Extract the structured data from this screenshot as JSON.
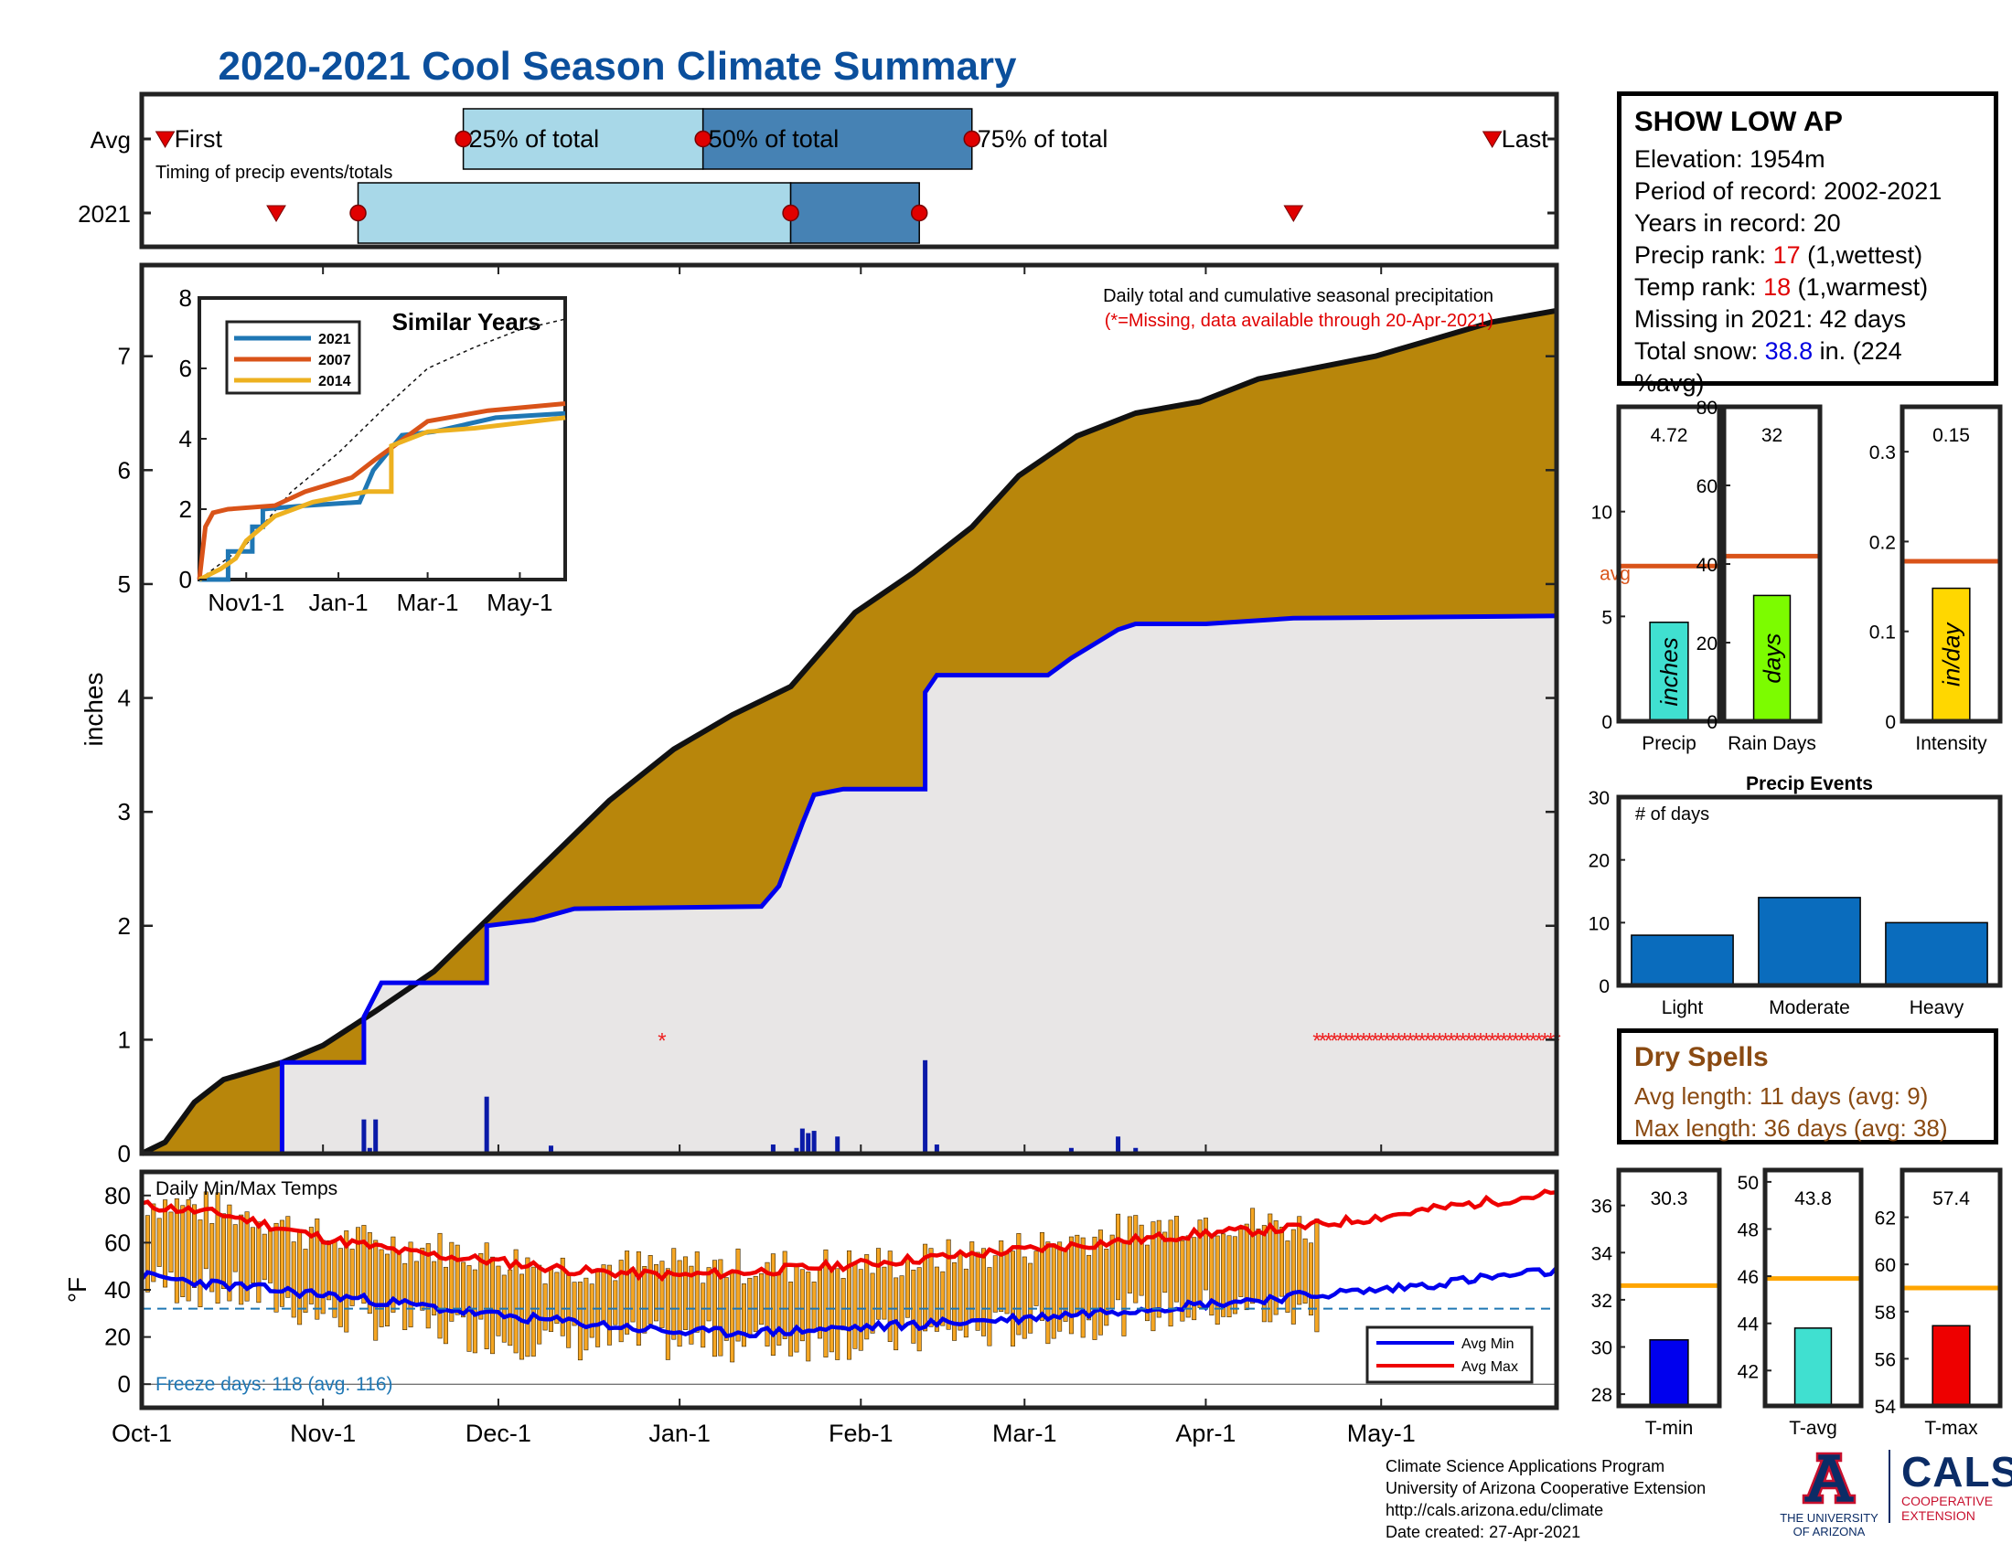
{
  "title": "2020-2021 Cool Season Climate Summary",
  "timing": {
    "row_labels": [
      "Avg",
      "2021"
    ],
    "labels": {
      "first": "First",
      "p25": "25% of total",
      "p50": "50% of total",
      "p75": "75% of total",
      "last": "Last"
    },
    "caption": "Timing of precip events/totals",
    "colors": {
      "light": "#a8d8e8",
      "dark": "#4682b4",
      "marker": "#e00000"
    },
    "avg": {
      "first": "2020-10-05",
      "p25": "2020-11-25",
      "p50": "2021-01-05",
      "p75": "2021-02-20",
      "last": "2021-05-20"
    },
    "y2021": {
      "first": "2020-10-24",
      "p25": "2020-11-07",
      "p50": "2021-01-20",
      "p75": "2021-02-11",
      "last": "2021-04-16"
    }
  },
  "chart_data": [
    {
      "type": "area",
      "id": "main-precip",
      "title": "Daily total and cumulative seasonal precipitation",
      "subtitle": "(*=Missing, data available through 20-Apr-2021)",
      "ylabel": "inches",
      "ylim": [
        0,
        7.8
      ],
      "yticks": [
        0,
        1,
        2,
        3,
        4,
        5,
        6,
        7
      ],
      "x_range": [
        "2020-10-01",
        "2021-05-31"
      ],
      "x_tick_labels": [
        [
          "2020-10-01",
          "Oct-1"
        ],
        [
          "2020-11-01",
          "Nov-1"
        ],
        [
          "2020-12-01",
          "Dec-1"
        ],
        [
          "2021-01-01",
          "Jan-1"
        ],
        [
          "2021-02-01",
          "Feb-1"
        ],
        [
          "2021-03-01",
          "Mar-1"
        ],
        [
          "2021-04-01",
          "Apr-1"
        ],
        [
          "2021-05-01",
          "May-1"
        ]
      ],
      "colors": {
        "avg_fill": "#b8860b",
        "season_fill": "#e8e6e6",
        "season_line": "#0000ee",
        "avg_line": "#111111",
        "daily_bar": "#0a1aa8",
        "missing": "#ee2020"
      },
      "cumulative_avg": [
        [
          "2020-10-01",
          0
        ],
        [
          "2020-10-05",
          0.1
        ],
        [
          "2020-10-10",
          0.45
        ],
        [
          "2020-10-15",
          0.65
        ],
        [
          "2020-10-25",
          0.8
        ],
        [
          "2020-11-01",
          0.95
        ],
        [
          "2020-11-10",
          1.25
        ],
        [
          "2020-11-20",
          1.6
        ],
        [
          "2020-11-30",
          2.1
        ],
        [
          "2020-12-10",
          2.6
        ],
        [
          "2020-12-20",
          3.1
        ],
        [
          "2020-12-31",
          3.55
        ],
        [
          "2021-01-10",
          3.85
        ],
        [
          "2021-01-20",
          4.1
        ],
        [
          "2021-01-31",
          4.75
        ],
        [
          "2021-02-10",
          5.1
        ],
        [
          "2021-02-20",
          5.5
        ],
        [
          "2021-02-28",
          5.95
        ],
        [
          "2021-03-10",
          6.3
        ],
        [
          "2021-03-20",
          6.5
        ],
        [
          "2021-03-31",
          6.6
        ],
        [
          "2021-04-10",
          6.8
        ],
        [
          "2021-04-20",
          6.9
        ],
        [
          "2021-04-30",
          7.0
        ],
        [
          "2021-05-10",
          7.15
        ],
        [
          "2021-05-20",
          7.3
        ],
        [
          "2021-05-31",
          7.4
        ]
      ],
      "cumulative_2021": [
        [
          "2020-10-01",
          0
        ],
        [
          "2020-10-25",
          0
        ],
        [
          "2020-10-25",
          0.8
        ],
        [
          "2020-11-08",
          0.8
        ],
        [
          "2020-11-08",
          1.2
        ],
        [
          "2020-11-11",
          1.5
        ],
        [
          "2020-11-29",
          1.5
        ],
        [
          "2020-11-29",
          2.0
        ],
        [
          "2020-12-07",
          2.05
        ],
        [
          "2020-12-14",
          2.15
        ],
        [
          "2021-01-15",
          2.17
        ],
        [
          "2021-01-18",
          2.35
        ],
        [
          "2021-01-22",
          2.9
        ],
        [
          "2021-01-24",
          3.15
        ],
        [
          "2021-01-29",
          3.2
        ],
        [
          "2021-02-12",
          3.2
        ],
        [
          "2021-02-12",
          4.05
        ],
        [
          "2021-02-14",
          4.2
        ],
        [
          "2021-03-05",
          4.2
        ],
        [
          "2021-03-09",
          4.35
        ],
        [
          "2021-03-17",
          4.6
        ],
        [
          "2021-03-20",
          4.65
        ],
        [
          "2021-04-01",
          4.65
        ],
        [
          "2021-04-16",
          4.7
        ],
        [
          "2021-05-31",
          4.72
        ]
      ],
      "daily_bars": [
        [
          "2020-11-08",
          0.3
        ],
        [
          "2020-11-09",
          0.05
        ],
        [
          "2020-11-10",
          0.3
        ],
        [
          "2020-11-29",
          0.5
        ],
        [
          "2020-12-10",
          0.07
        ],
        [
          "2021-01-17",
          0.08
        ],
        [
          "2021-01-21",
          0.05
        ],
        [
          "2021-01-22",
          0.22
        ],
        [
          "2021-01-23",
          0.18
        ],
        [
          "2021-01-24",
          0.2
        ],
        [
          "2021-01-28",
          0.15
        ],
        [
          "2021-02-12",
          0.82
        ],
        [
          "2021-02-14",
          0.08
        ],
        [
          "2021-03-09",
          0.05
        ],
        [
          "2021-03-17",
          0.15
        ],
        [
          "2021-03-20",
          0.05
        ]
      ],
      "missing_dates": [
        "2020-12-29",
        "2021-04-20",
        "2021-05-31"
      ],
      "missing_y": 1.0
    },
    {
      "type": "line",
      "id": "similar-years",
      "title": "Similar Years",
      "ylim": [
        0,
        8
      ],
      "yticks": [
        0,
        2,
        4,
        6,
        8
      ],
      "x_range": [
        "2020-10-01",
        "2021-05-31"
      ],
      "x_tick_labels": [
        [
          "2020-11-01",
          "Nov1-1"
        ],
        [
          "2021-01-01",
          "Jan-1"
        ],
        [
          "2021-03-01",
          "Mar-1"
        ],
        [
          "2021-05-01",
          "May-1"
        ]
      ],
      "series": [
        {
          "name": "2021",
          "color": "#1f77b4",
          "values": [
            [
              "2020-10-01",
              0
            ],
            [
              "2020-10-20",
              0
            ],
            [
              "2020-10-20",
              0.8
            ],
            [
              "2020-11-05",
              0.8
            ],
            [
              "2020-11-05",
              1.5
            ],
            [
              "2020-11-12",
              1.5
            ],
            [
              "2020-11-12",
              2.0
            ],
            [
              "2020-12-10",
              2.1
            ],
            [
              "2021-01-15",
              2.2
            ],
            [
              "2021-01-24",
              3.1
            ],
            [
              "2021-02-12",
              4.1
            ],
            [
              "2021-03-05",
              4.2
            ],
            [
              "2021-04-15",
              4.6
            ],
            [
              "2021-05-31",
              4.72
            ]
          ]
        },
        {
          "name": "2007",
          "color": "#d95319",
          "values": [
            [
              "2020-10-01",
              0
            ],
            [
              "2020-10-05",
              1.5
            ],
            [
              "2020-10-10",
              1.9
            ],
            [
              "2020-10-20",
              2.0
            ],
            [
              "2020-11-20",
              2.1
            ],
            [
              "2020-12-10",
              2.5
            ],
            [
              "2021-01-10",
              2.9
            ],
            [
              "2021-01-25",
              3.4
            ],
            [
              "2021-02-10",
              3.9
            ],
            [
              "2021-03-01",
              4.5
            ],
            [
              "2021-04-10",
              4.8
            ],
            [
              "2021-05-31",
              5.0
            ]
          ]
        },
        {
          "name": "2014",
          "color": "#edb120",
          "values": [
            [
              "2020-10-01",
              0
            ],
            [
              "2020-10-15",
              0.3
            ],
            [
              "2020-10-25",
              0.6
            ],
            [
              "2020-11-01",
              1.1
            ],
            [
              "2020-11-20",
              1.8
            ],
            [
              "2020-12-15",
              2.2
            ],
            [
              "2021-01-20",
              2.5
            ],
            [
              "2021-02-05",
              2.5
            ],
            [
              "2021-02-05",
              3.8
            ],
            [
              "2021-03-01",
              4.2
            ],
            [
              "2021-04-01",
              4.3
            ],
            [
              "2021-05-31",
              4.6
            ]
          ]
        }
      ],
      "reference_line": [
        [
          "2020-10-01",
          0
        ],
        [
          "2020-11-01",
          1.0
        ],
        [
          "2020-12-01",
          2.5
        ],
        [
          "2021-01-01",
          3.6
        ],
        [
          "2021-02-01",
          4.9
        ],
        [
          "2021-03-01",
          6.0
        ],
        [
          "2021-04-01",
          6.6
        ],
        [
          "2021-05-01",
          7.1
        ],
        [
          "2021-05-31",
          7.4
        ]
      ]
    },
    {
      "type": "bar",
      "id": "precip-summary",
      "panels": [
        {
          "label": "Precip",
          "value": 4.72,
          "value_text": "4.72",
          "avg": 7.4,
          "avg_label": "avg",
          "unit_label": "inches",
          "ylim": [
            0,
            15
          ],
          "yticks": [
            0,
            5,
            10
          ],
          "color": "#40e0d0"
        },
        {
          "label": "Rain Days",
          "value": 32,
          "value_text": "32",
          "avg": 42,
          "unit_label": "days",
          "ylim": [
            0,
            80
          ],
          "yticks": [
            0,
            20,
            40,
            60,
            80
          ],
          "color": "#7cfc00"
        },
        {
          "label": "Intensity",
          "value": 0.148,
          "value_text": "0.15",
          "avg": 0.178,
          "unit_label": "in/day",
          "ylim": [
            0,
            0.35
          ],
          "yticks": [
            0,
            0.1,
            0.2,
            0.3
          ],
          "color": "#ffd700"
        }
      ],
      "avg_line_color": "#d95319"
    },
    {
      "type": "bar",
      "id": "precip-events",
      "title": "Precip Events",
      "annotation": "# of days",
      "categories": [
        "Light",
        "Moderate",
        "Heavy"
      ],
      "values": [
        8,
        14,
        10
      ],
      "ylim": [
        0,
        30
      ],
      "yticks": [
        0,
        10,
        20,
        30
      ],
      "color": "#0a6cbd"
    },
    {
      "type": "bar",
      "id": "daily-temps",
      "title": "Daily Min/Max Temps",
      "ylabel": "°F",
      "ylim": [
        -10,
        90
      ],
      "yticks": [
        0,
        20,
        40,
        60,
        80
      ],
      "freeze_line": 32,
      "freeze_text": "Freeze days: 118 (avg. 116)",
      "legend": [
        "Avg Min",
        "Avg Max"
      ],
      "colors": {
        "bar": "#f5a623",
        "avg_min": "#0000ee",
        "avg_max": "#ee0000",
        "freeze": "#1f77b4"
      },
      "data_through": "2021-04-20",
      "avg_min_pts": [
        [
          "2020-10-01",
          46
        ],
        [
          "2020-10-15",
          42
        ],
        [
          "2020-11-01",
          38
        ],
        [
          "2020-11-15",
          34
        ],
        [
          "2020-12-01",
          29
        ],
        [
          "2020-12-15",
          26
        ],
        [
          "2021-01-01",
          22
        ],
        [
          "2021-01-15",
          22
        ],
        [
          "2021-02-01",
          24
        ],
        [
          "2021-02-15",
          26
        ],
        [
          "2021-03-01",
          28
        ],
        [
          "2021-03-15",
          31
        ],
        [
          "2021-04-01",
          34
        ],
        [
          "2021-04-15",
          37
        ],
        [
          "2021-05-01",
          40
        ],
        [
          "2021-05-15",
          44
        ],
        [
          "2021-05-31",
          48
        ]
      ],
      "avg_max_pts": [
        [
          "2020-10-01",
          76
        ],
        [
          "2020-10-15",
          72
        ],
        [
          "2020-11-01",
          62
        ],
        [
          "2020-11-15",
          56
        ],
        [
          "2020-12-01",
          52
        ],
        [
          "2020-12-15",
          48
        ],
        [
          "2021-01-01",
          46
        ],
        [
          "2021-01-15",
          48
        ],
        [
          "2021-02-01",
          51
        ],
        [
          "2021-02-15",
          54
        ],
        [
          "2021-03-01",
          57
        ],
        [
          "2021-03-15",
          60
        ],
        [
          "2021-04-01",
          64
        ],
        [
          "2021-04-15",
          66
        ],
        [
          "2021-05-01",
          71
        ],
        [
          "2021-05-15",
          76
        ],
        [
          "2021-05-31",
          81
        ]
      ],
      "daily_mean_max": [
        [
          "2020-10-01",
          78
        ],
        [
          "2020-10-20",
          72
        ],
        [
          "2020-11-01",
          62
        ],
        [
          "2020-11-20",
          58
        ],
        [
          "2020-12-10",
          50
        ],
        [
          "2021-01-01",
          50
        ],
        [
          "2021-01-20",
          50
        ],
        [
          "2021-02-10",
          52
        ],
        [
          "2021-03-01",
          58
        ],
        [
          "2021-03-20",
          66
        ],
        [
          "2021-04-01",
          70
        ],
        [
          "2021-04-20",
          66
        ]
      ],
      "daily_mean_min": [
        [
          "2020-10-01",
          44
        ],
        [
          "2020-10-20",
          38
        ],
        [
          "2020-11-01",
          30
        ],
        [
          "2020-11-20",
          24
        ],
        [
          "2020-12-10",
          18
        ],
        [
          "2021-01-01",
          18
        ],
        [
          "2021-01-20",
          18
        ],
        [
          "2021-02-10",
          20
        ],
        [
          "2021-03-01",
          24
        ],
        [
          "2021-03-20",
          30
        ],
        [
          "2021-04-01",
          32
        ],
        [
          "2021-04-20",
          30
        ]
      ]
    },
    {
      "type": "bar",
      "id": "temp-summary",
      "panels": [
        {
          "label": "T-min",
          "value": 30.3,
          "value_text": "30.3",
          "avg": 32.6,
          "ylim": [
            27.5,
            37.5
          ],
          "yticks": [
            28,
            30,
            32,
            34,
            36
          ],
          "color": "#0000ee"
        },
        {
          "label": "T-avg",
          "value": 43.8,
          "value_text": "43.8",
          "avg": 45.9,
          "ylim": [
            40.5,
            50.5
          ],
          "yticks": [
            42,
            44,
            46,
            48,
            50
          ],
          "color": "#40e0d0"
        },
        {
          "label": "T-max",
          "value": 57.4,
          "value_text": "57.4",
          "avg": 59.0,
          "ylim": [
            54,
            64
          ],
          "yticks": [
            54,
            56,
            58,
            60,
            62
          ],
          "color": "#ee0000"
        }
      ],
      "avg_line_color": "#ffa500"
    }
  ],
  "station": {
    "name": "SHOW LOW AP",
    "elevation": "Elevation: 1954m",
    "period": "Period of record: 2002-2021",
    "years": "Years in record: 20",
    "precip_rank_label": "Precip rank: ",
    "precip_rank": "17",
    "precip_rank_note": " (1,wettest)",
    "temp_rank_label": "Temp rank: ",
    "temp_rank": "18",
    "temp_rank_note": " (1,warmest)",
    "missing": "Missing in 2021: 42 days",
    "snow_label": "Total snow: ",
    "snow_value": "38.8",
    "snow_note": " in. (224",
    "snow_note2": "%avg)"
  },
  "dry_spells": {
    "title": "Dry Spells",
    "avg": "Avg length: 11 days (avg: 9)",
    "max": "Max length: 36 days (avg: 38)"
  },
  "footer": {
    "lines": [
      "Climate Science Applications Program",
      "University of Arizona Cooperative Extension",
      "http://cals.arizona.edu/climate",
      " Date created: 27-Apr-2021"
    ]
  },
  "logos": {
    "ua_line1": "THE UNIVERSITY",
    "ua_line2": "OF ARIZONA",
    "cals": "CALS",
    "cals_line1": "COOPERATIVE",
    "cals_line2": "EXTENSION"
  }
}
